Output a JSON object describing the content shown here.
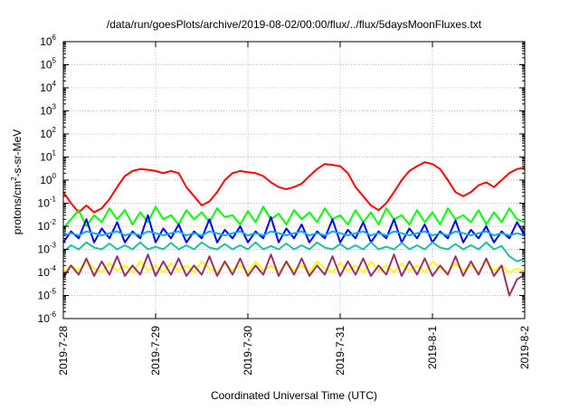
{
  "chart_data": {
    "type": "line",
    "title": "/data/run/goesPlots/archive/2019-08-02/00:00/flux/../flux/5daysMoonFluxes.txt",
    "xlabel": "Coordinated Universal Time (UTC)",
    "ylabel": "protons/cm2-s-sr-MeV",
    "y_scale": "log",
    "ylim": [
      1e-06,
      1000000.0
    ],
    "xlim": [
      "2019-07-28 00:00",
      "2019-08-02 00:00"
    ],
    "grid": true,
    "legend": null,
    "y_ticks": [
      {
        "base": "10",
        "exp": "-6"
      },
      {
        "base": "10",
        "exp": "-5"
      },
      {
        "base": "10",
        "exp": "-4"
      },
      {
        "base": "10",
        "exp": "-3"
      },
      {
        "base": "10",
        "exp": "-2"
      },
      {
        "base": "10",
        "exp": "-1"
      },
      {
        "base": "10",
        "exp": "0"
      },
      {
        "base": "10",
        "exp": "1"
      },
      {
        "base": "10",
        "exp": "2"
      },
      {
        "base": "10",
        "exp": "3"
      },
      {
        "base": "10",
        "exp": "4"
      },
      {
        "base": "10",
        "exp": "5"
      },
      {
        "base": "10",
        "exp": "6"
      }
    ],
    "x_ticks": [
      "2019-7-28",
      "2019-7-29",
      "2019-7-30",
      "2019-7-31",
      "2019-8-1",
      "2019-8-2"
    ],
    "x_hours": [
      0,
      2,
      4,
      6,
      8,
      10,
      12,
      14,
      16,
      18,
      20,
      22,
      24,
      26,
      28,
      30,
      32,
      34,
      36,
      38,
      40,
      42,
      44,
      46,
      48,
      50,
      52,
      54,
      56,
      58,
      60,
      62,
      64,
      66,
      68,
      70,
      72,
      74,
      76,
      78,
      80,
      82,
      84,
      86,
      88,
      90,
      92,
      94,
      96,
      98,
      100,
      102,
      104,
      106,
      108,
      110,
      112,
      114,
      116,
      118,
      120
    ],
    "series": [
      {
        "color": "#ff0000",
        "values": [
          0.3,
          0.1,
          0.04,
          0.08,
          0.04,
          0.06,
          0.15,
          0.5,
          1.5,
          2.5,
          3,
          2.8,
          2.5,
          2,
          2.5,
          2,
          0.5,
          0.2,
          0.08,
          0.12,
          0.3,
          1,
          2,
          2.5,
          2.2,
          2,
          1.5,
          0.8,
          0.5,
          0.4,
          0.5,
          0.7,
          1.5,
          3,
          5,
          4.5,
          4,
          2,
          0.5,
          0.2,
          0.08,
          0.05,
          0.1,
          0.3,
          1,
          2.5,
          4,
          6,
          5,
          3,
          1,
          0.3,
          0.2,
          0.3,
          0.6,
          0.8,
          0.5,
          1,
          2,
          3,
          3.5
        ]
      },
      {
        "color": "#00ff00",
        "values": [
          0.008,
          0.02,
          0.05,
          0.01,
          0.03,
          0.015,
          0.06,
          0.02,
          0.05,
          0.012,
          0.04,
          0.015,
          0.07,
          0.02,
          0.03,
          0.012,
          0.05,
          0.02,
          0.04,
          0.015,
          0.06,
          0.025,
          0.03,
          0.012,
          0.045,
          0.015,
          0.07,
          0.02,
          0.035,
          0.012,
          0.05,
          0.02,
          0.04,
          0.015,
          0.06,
          0.02,
          0.03,
          0.012,
          0.05,
          0.015,
          0.04,
          0.012,
          0.06,
          0.02,
          0.03,
          0.012,
          0.05,
          0.015,
          0.04,
          0.012,
          0.06,
          0.02,
          0.03,
          0.015,
          0.05,
          0.012,
          0.04,
          0.015,
          0.06,
          0.02,
          0.015
        ]
      },
      {
        "color": "#0000ee",
        "values": [
          0.002,
          0.006,
          0.003,
          0.02,
          0.002,
          0.008,
          0.003,
          0.015,
          0.002,
          0.006,
          0.003,
          0.03,
          0.002,
          0.008,
          0.003,
          0.012,
          0.002,
          0.006,
          0.003,
          0.02,
          0.002,
          0.007,
          0.003,
          0.01,
          0.002,
          0.006,
          0.003,
          0.025,
          0.002,
          0.008,
          0.003,
          0.012,
          0.002,
          0.006,
          0.003,
          0.02,
          0.002,
          0.007,
          0.003,
          0.015,
          0.002,
          0.006,
          0.003,
          0.02,
          0.002,
          0.008,
          0.003,
          0.012,
          0.002,
          0.006,
          0.003,
          0.018,
          0.002,
          0.007,
          0.003,
          0.01,
          0.002,
          0.006,
          0.003,
          0.015,
          0.004
        ]
      },
      {
        "color": "#00aaff",
        "values": [
          0.004,
          0.005,
          0.004,
          0.006,
          0.005,
          0.004,
          0.005,
          0.006,
          0.004,
          0.005,
          0.004,
          0.006,
          0.005,
          0.004,
          0.005,
          0.006,
          0.004,
          0.005,
          0.004,
          0.006,
          0.005,
          0.004,
          0.005,
          0.006,
          0.004,
          0.005,
          0.004,
          0.006,
          0.005,
          0.004,
          0.005,
          0.006,
          0.004,
          0.005,
          0.004,
          0.006,
          0.005,
          0.004,
          0.005,
          0.006,
          0.004,
          0.005,
          0.004,
          0.006,
          0.005,
          0.004,
          0.005,
          0.006,
          0.004,
          0.005,
          0.004,
          0.006,
          0.005,
          0.004,
          0.005,
          0.006,
          0.004,
          0.005,
          0.004,
          0.005,
          0.004
        ]
      },
      {
        "color": "#20c0a0",
        "values": [
          0.0008,
          0.0015,
          0.001,
          0.002,
          0.0012,
          0.001,
          0.0018,
          0.001,
          0.0015,
          0.001,
          0.002,
          0.001,
          0.0013,
          0.001,
          0.0019,
          0.001,
          0.0015,
          0.001,
          0.002,
          0.0012,
          0.001,
          0.0017,
          0.001,
          0.0015,
          0.001,
          0.002,
          0.001,
          0.0014,
          0.001,
          0.0018,
          0.001,
          0.0015,
          0.001,
          0.002,
          0.0012,
          0.001,
          0.0017,
          0.001,
          0.0015,
          0.001,
          0.002,
          0.001,
          0.0013,
          0.001,
          0.0019,
          0.001,
          0.0015,
          0.001,
          0.002,
          0.0012,
          0.001,
          0.0017,
          0.001,
          0.0015,
          0.001,
          0.002,
          0.001,
          0.0014,
          0.0005,
          0.0003,
          0.0004
        ]
      },
      {
        "color": "#ffff00",
        "values": [
          0.0001,
          0.0002,
          0.00012,
          0.0003,
          0.00015,
          0.0001,
          0.00025,
          0.00012,
          0.0002,
          0.0001,
          0.0003,
          0.00012,
          0.0002,
          0.0001,
          0.00025,
          0.00012,
          0.0002,
          0.0001,
          0.0003,
          0.00015,
          0.0001,
          0.00025,
          0.00012,
          0.0002,
          0.0001,
          0.0003,
          0.00012,
          0.0002,
          0.0001,
          0.00025,
          0.00012,
          0.0002,
          0.0001,
          0.0003,
          0.00015,
          0.0001,
          0.00025,
          0.00012,
          0.0002,
          0.0001,
          0.0003,
          0.00012,
          0.0002,
          0.0001,
          0.00025,
          0.00012,
          0.0002,
          0.0001,
          0.0003,
          0.00015,
          0.0001,
          0.00025,
          0.00012,
          0.0002,
          0.0001,
          0.0003,
          0.00012,
          0.0002,
          0.0001,
          0.00015,
          0.0001
        ]
      },
      {
        "color": "#993366",
        "values": [
          6e-05,
          0.0002,
          8e-05,
          0.0004,
          7e-05,
          0.0003,
          8e-05,
          0.0005,
          7e-05,
          0.0002,
          8e-05,
          0.0006,
          7e-05,
          0.0003,
          8e-05,
          0.0004,
          7e-05,
          0.0002,
          8e-05,
          0.0005,
          7e-05,
          0.0003,
          8e-05,
          0.0004,
          7e-05,
          0.0002,
          8e-05,
          0.0006,
          7e-05,
          0.0003,
          8e-05,
          0.0004,
          7e-05,
          0.0002,
          8e-05,
          0.0005,
          7e-05,
          0.0003,
          8e-05,
          0.0004,
          7e-05,
          0.0002,
          8e-05,
          0.0006,
          7e-05,
          0.0003,
          8e-05,
          0.0004,
          7e-05,
          0.0002,
          8e-05,
          0.0005,
          7e-05,
          0.0003,
          8e-05,
          0.0004,
          7e-05,
          0.0002,
          1e-05,
          5e-05,
          8e-05
        ]
      }
    ]
  }
}
